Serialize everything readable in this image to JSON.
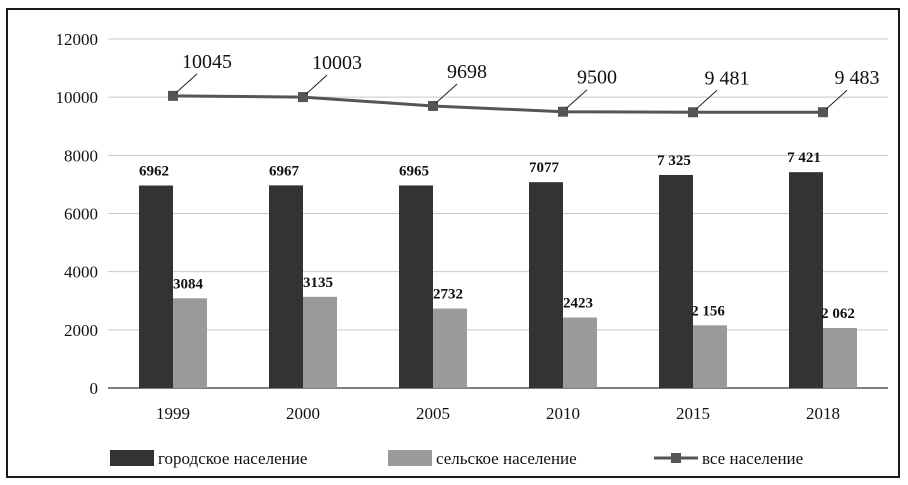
{
  "chart_data": {
    "type": "bar",
    "categories": [
      "1999",
      "2000",
      "2005",
      "2010",
      "2015",
      "2018"
    ],
    "series": [
      {
        "name": "городское население",
        "type": "bar",
        "color": "#333333",
        "values": [
          6962,
          6967,
          6965,
          7077,
          7325,
          7421
        ],
        "labels": [
          "6962",
          "6967",
          "6965",
          "7077",
          "7 325",
          "7 421"
        ]
      },
      {
        "name": "сельское население",
        "type": "bar",
        "color": "#9a9a9a",
        "values": [
          3084,
          3135,
          2732,
          2423,
          2156,
          2062
        ],
        "labels": [
          "3084",
          "3135",
          "2732",
          "2423",
          "2 156",
          "2 062"
        ]
      },
      {
        "name": "все население",
        "type": "line",
        "color": "#555555",
        "values": [
          10045,
          10003,
          9698,
          9500,
          9481,
          9483
        ],
        "labels": [
          "10045",
          "10003",
          "9698",
          "9500",
          "9 481",
          "9 483"
        ]
      }
    ],
    "ylim": [
      0,
      12000
    ],
    "yticks": [
      0,
      2000,
      4000,
      6000,
      8000,
      10000,
      12000
    ],
    "grid": true,
    "legend_position": "bottom"
  }
}
